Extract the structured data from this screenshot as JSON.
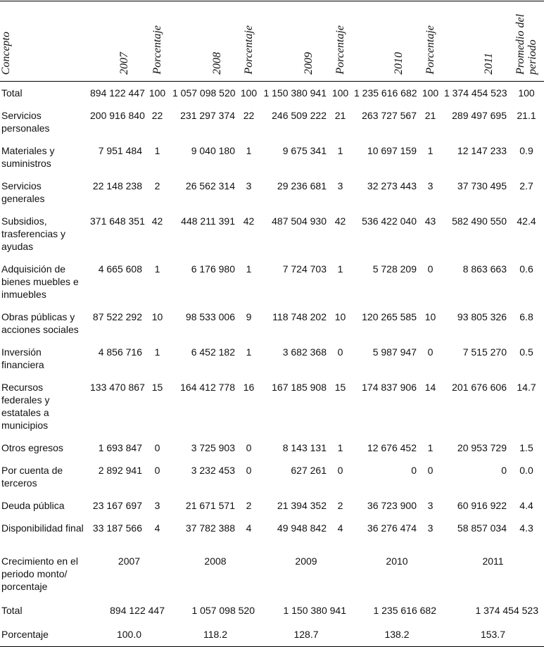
{
  "header": {
    "columns": [
      "Concepto",
      "2007",
      "Porcentaje",
      "2008",
      "Porcentaje",
      "2009",
      "Porcentaje",
      "2010",
      "Porcentaje",
      "2011",
      "Promedio del periodo"
    ]
  },
  "table": {
    "rows": [
      [
        "Total",
        "894 122 447",
        "100",
        "1 057 098 520",
        "100",
        "1 150 380 941",
        "100",
        "1 235 616 682",
        "100",
        "1 374 454 523",
        "100"
      ],
      [
        "Servicios personales",
        "200 916 840",
        "22",
        "231 297 374",
        "22",
        "246 509 222",
        "21",
        "263 727 567",
        "21",
        "289 497 695",
        "21.1"
      ],
      [
        "Materiales y suministros",
        "7 951 484",
        "1",
        "9 040 180",
        "1",
        "9 675 341",
        "1",
        "10 697 159",
        "1",
        "12 147 233",
        "0.9"
      ],
      [
        "Servicios generales",
        "22 148 238",
        "2",
        "26 562 314",
        "3",
        "29 236 681",
        "3",
        "32 273 443",
        "3",
        "37 730 495",
        "2.7"
      ],
      [
        "Subsidios, trasferencias y ayudas",
        "371 648 351",
        "42",
        "448 211 391",
        "42",
        "487 504 930",
        "42",
        "536 422 040",
        "43",
        "582 490 550",
        "42.4"
      ],
      [
        "Adquisición de bienes muebles e inmuebles",
        "4 665 608",
        "1",
        "6 176 980",
        "1",
        "7 724 703",
        "1",
        "5 728 209",
        "0",
        "8 863 663",
        "0.6"
      ],
      [
        "Obras públicas y acciones sociales",
        "87 522 292",
        "10",
        "98 533 006",
        "9",
        "118 748 202",
        "10",
        "120 265 585",
        "10",
        "93 805 326",
        "6.8"
      ],
      [
        "Inversión financiera",
        "4 856 716",
        "1",
        "6 452 182",
        "1",
        "3 682 368",
        "0",
        "5 987 947",
        "0",
        "7 515 270",
        "0.5"
      ],
      [
        "Recursos federales y estatales a municipios",
        "133 470 867",
        "15",
        "164 412 778",
        "16",
        "167 185 908",
        "15",
        "174 837 906",
        "14",
        "201 676 606",
        "14.7"
      ],
      [
        "Otros egresos",
        "1 693 847",
        "0",
        "3 725 903",
        "0",
        "8 143 131",
        "1",
        "12 676 452",
        "1",
        "20 953 729",
        "1.5"
      ],
      [
        "Por cuenta de terceros",
        "2 892 941",
        "0",
        "3 232 453",
        "0",
        "627 261",
        "0",
        "0",
        "0",
        "0",
        "0.0"
      ],
      [
        "Deuda pública",
        "23 167 697",
        "3",
        "21 671 571",
        "2",
        "21 394 352",
        "2",
        "36 723 900",
        "3",
        "60 916 922",
        "4.4"
      ],
      [
        "Disponibilidad final",
        "33 187 566",
        "4",
        "37 782 388",
        "4",
        "49 948 842",
        "4",
        "36 276 474",
        "3",
        "58 857 034",
        "4.3"
      ]
    ]
  },
  "growth": {
    "header": [
      "Crecimiento en el periodo monto/ porcentaje",
      "2007",
      "2008",
      "2009",
      "2010",
      "2011"
    ],
    "rows": [
      [
        "Total",
        "894 122 447",
        "1 057 098 520",
        "1 150 380 941",
        "1 235 616 682",
        "1 374 454 523"
      ],
      [
        "Porcentaje",
        "100.0",
        "118.2",
        "128.7",
        "138.2",
        "153.7"
      ]
    ]
  }
}
